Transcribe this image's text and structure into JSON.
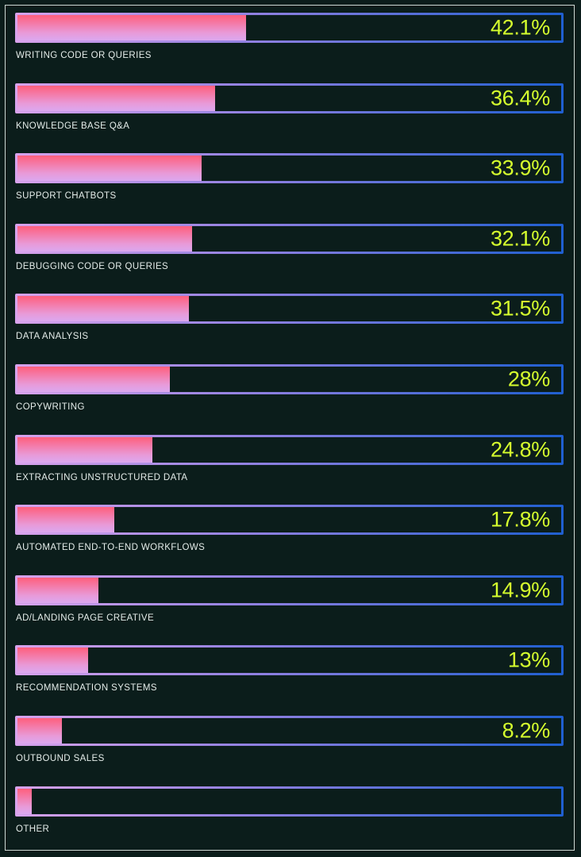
{
  "chart_data": {
    "type": "bar",
    "orientation": "horizontal",
    "value_max": 100,
    "categories": [
      "WRITING CODE OR QUERIES",
      "KNOWLEDGE BASE Q&A",
      "SUPPORT CHATBOTS",
      "DEBUGGING CODE OR QUERIES",
      "DATA ANALYSIS",
      "COPYWRITING",
      "EXTRACTING UNSTRUCTURED DATA",
      "AUTOMATED END-TO-END WORKFLOWS",
      "AD/LANDING PAGE CREATIVE",
      "RECOMMENDATION SYSTEMS",
      "OUTBOUND SALES",
      "OTHER"
    ],
    "values": [
      42.1,
      36.4,
      33.9,
      32.1,
      31.5,
      28,
      24.8,
      17.8,
      14.9,
      13,
      8.2,
      2.6
    ],
    "value_labels": [
      "42.1%",
      "36.4%",
      "33.9%",
      "32.1%",
      "31.5%",
      "28%",
      "24.8%",
      "17.8%",
      "14.9%",
      "13%",
      "8.2%",
      ""
    ],
    "colors": {
      "background": "#0b1d1b",
      "value_text": "#d6ff2e",
      "label_text": "#e4ece9",
      "fill_top": "#ff5f7d",
      "fill_bottom": "#dba8f0",
      "border_start": "#d8a2ec",
      "border_end": "#1f5fd0"
    }
  }
}
